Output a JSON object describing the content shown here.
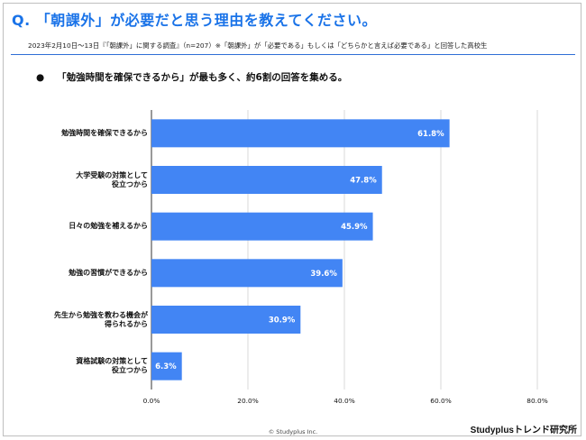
{
  "header": {
    "question": "Q. 「朝課外」が必要だと思う理由を教えてください。",
    "subtitle": "2023年2月10日～13日『「朝課外」に関する調査』（n=207）※「朝課外」が「必要である」もしくは「どちらかと言えば必要である」と回答した高校生"
  },
  "summary": {
    "bullet": "●",
    "text": "「勉強時間を確保できるから」が最も多く、約6割の回答を集める。"
  },
  "chart_data": {
    "type": "bar",
    "orientation": "horizontal",
    "categories": [
      "勉強時間を確保できるから",
      "大学受験の対策として\n役立つから",
      "日々の勉強を補えるから",
      "勉強の習慣ができるから",
      "先生から勉強を教わる機会が\n得られるから",
      "資格試験の対策として\n役立つから"
    ],
    "values": [
      61.8,
      47.8,
      45.9,
      39.6,
      30.9,
      6.3
    ],
    "value_labels": [
      "61.8%",
      "47.8%",
      "45.9%",
      "39.6%",
      "30.9%",
      "6.3%"
    ],
    "xlim": [
      0,
      80
    ],
    "ticks": [
      "0.0%",
      "20.0%",
      "40.0%",
      "60.0%",
      "80.0%"
    ],
    "tick_values": [
      0,
      20,
      40,
      60,
      80
    ],
    "bar_color": "#4285f4",
    "grid": true
  },
  "footer": {
    "copyright": "© Studyplus Inc.",
    "brand": "Studyplusトレンド研究所"
  },
  "colors": {
    "accent": "#1a73e8",
    "bar": "#4285f4"
  }
}
